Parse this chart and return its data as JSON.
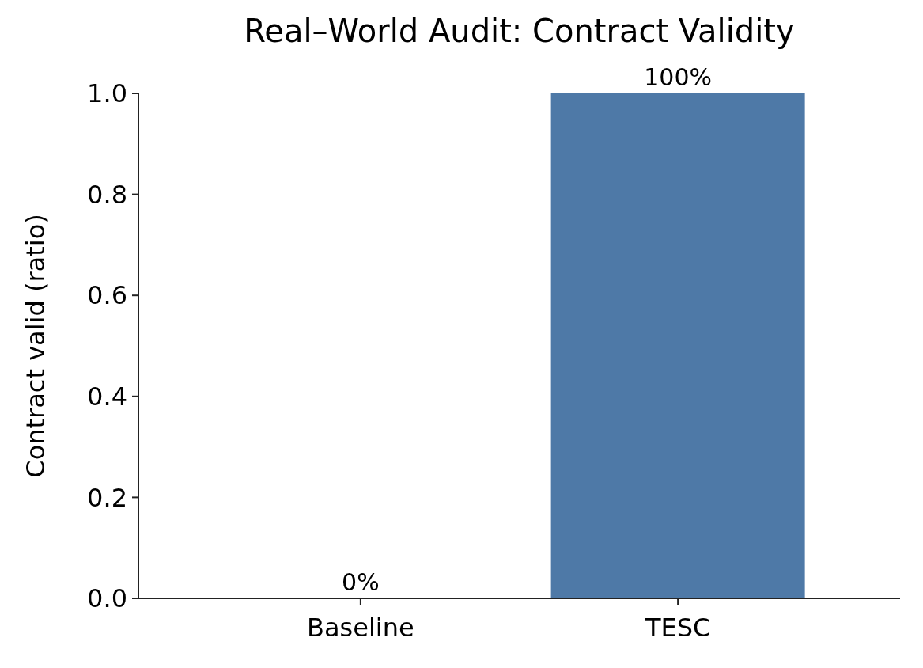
{
  "chart_data": {
    "type": "bar",
    "title": "Real–World Audit: Contract Validity",
    "ylabel": "Contract valid (ratio)",
    "categories": [
      "Baseline",
      "TESC"
    ],
    "values": [
      0,
      1
    ],
    "color": "#4e79a7",
    "value_labels": [
      "0%",
      "100%"
    ],
    "ylim": [
      0,
      1
    ],
    "yticks": [
      {
        "value": 0,
        "label": "0.0"
      },
      {
        "value": 0.2,
        "label": "0.2"
      },
      {
        "value": 0.4,
        "label": "0.4"
      },
      {
        "value": 0.6,
        "label": "0.6"
      },
      {
        "value": 0.8,
        "label": "0.8"
      },
      {
        "value": 1,
        "label": "1.0"
      }
    ]
  }
}
